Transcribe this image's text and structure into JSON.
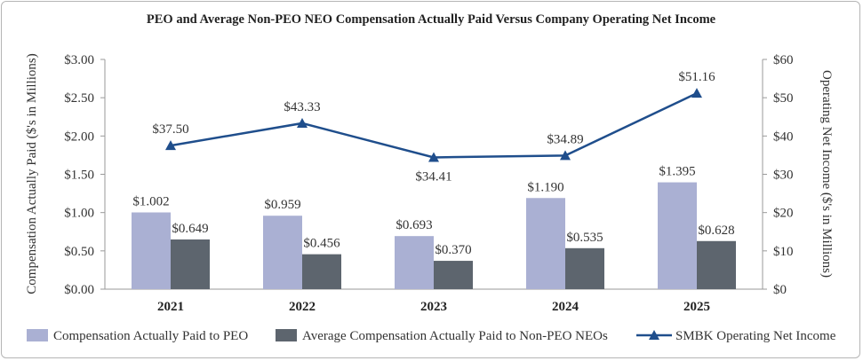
{
  "chart_data": {
    "type": "bar",
    "title": "PEO and Average Non-PEO NEO Compensation Actually Paid Versus Company Operating Net Income",
    "categories": [
      "2021",
      "2022",
      "2023",
      "2024",
      "2025"
    ],
    "series": [
      {
        "name": "Compensation Actually Paid to PEO",
        "type": "bar",
        "axis": "left",
        "color": "#aab0d3",
        "values": [
          1.002,
          0.959,
          0.693,
          1.19,
          1.395
        ],
        "labels": [
          "$1.002",
          "$0.959",
          "$0.693",
          "$1.190",
          "$1.395"
        ]
      },
      {
        "name": "Average Compensation Actually Paid to Non-PEO NEOs",
        "type": "bar",
        "axis": "left",
        "color": "#5d656e",
        "values": [
          0.649,
          0.456,
          0.37,
          0.535,
          0.628
        ],
        "labels": [
          "$0.649",
          "$0.456",
          "$0.370",
          "$0.535",
          "$0.628"
        ]
      },
      {
        "name": "SMBK Operating Net Income",
        "type": "line",
        "axis": "right",
        "color": "#1f4e8c",
        "marker": "triangle",
        "values": [
          37.5,
          43.33,
          34.41,
          34.89,
          51.16
        ],
        "labels": [
          "$37.50",
          "$43.33",
          "$34.41",
          "$34.89",
          "$51.16"
        ]
      }
    ],
    "y_left": {
      "label": "Compensation Actually Paid ($'s in Millions)",
      "range": [
        0,
        3
      ],
      "ticks": [
        0,
        0.5,
        1,
        1.5,
        2,
        2.5,
        3
      ],
      "tick_labels": [
        "$0.00",
        "$0.50",
        "$1.00",
        "$1.50",
        "$2.00",
        "$2.50",
        "$3.00"
      ]
    },
    "y_right": {
      "label": "Operating Net Income ($'s in Millions)",
      "range": [
        0,
        60
      ],
      "ticks": [
        0,
        10,
        20,
        30,
        40,
        50,
        60
      ],
      "tick_labels": [
        "$0",
        "$10",
        "$20",
        "$30",
        "$40",
        "$50",
        "$60"
      ]
    },
    "grid": false,
    "legend_position": "bottom"
  }
}
